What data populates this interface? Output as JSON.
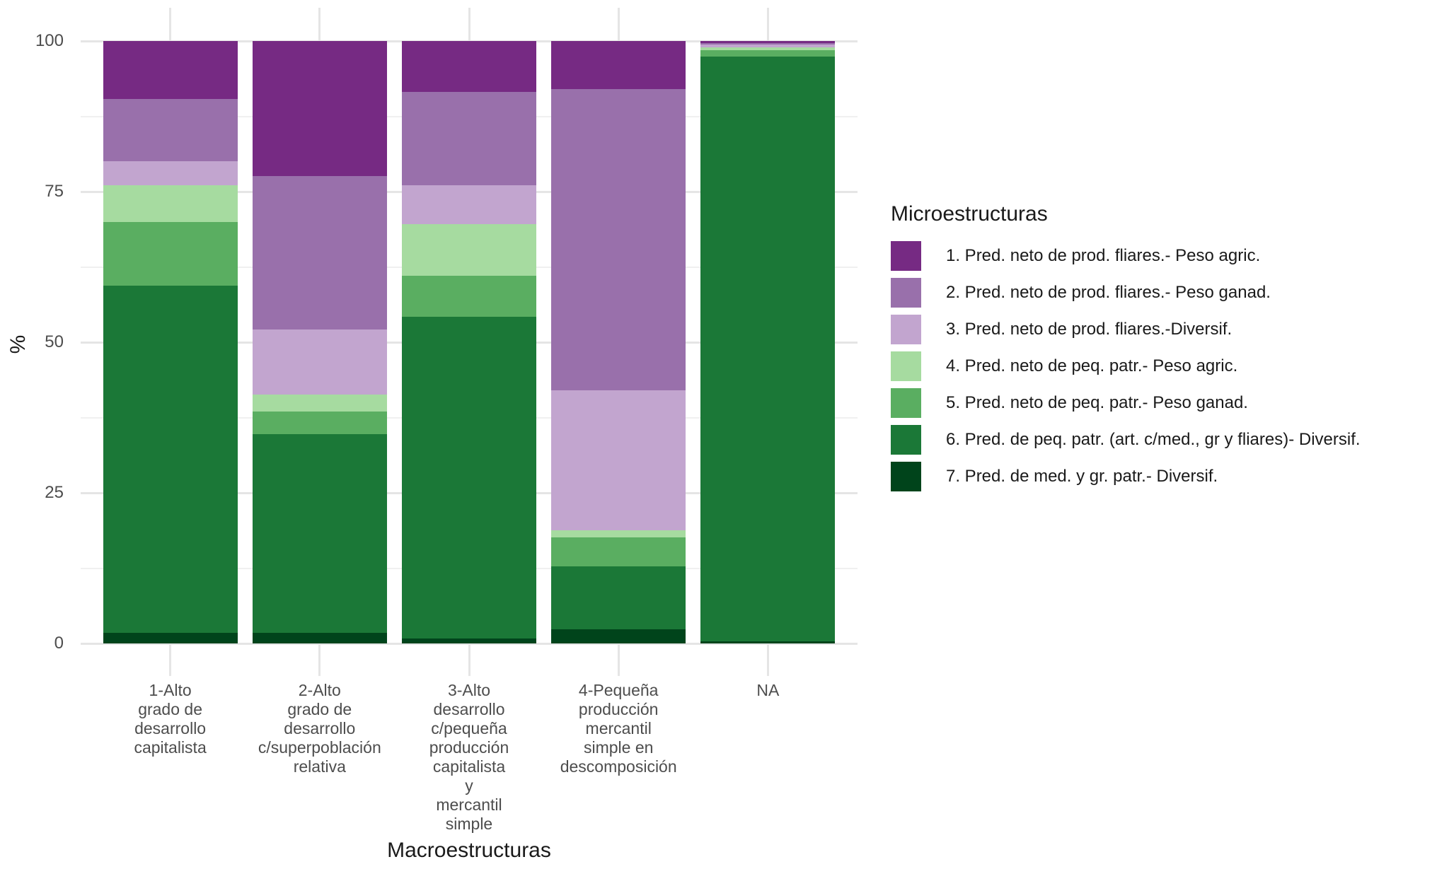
{
  "chart_data": {
    "type": "bar",
    "stacked": true,
    "percent_scale": true,
    "xlabel": "Macroestructuras",
    "ylabel": "%",
    "ylim": [
      0,
      100
    ],
    "yticks": [
      0,
      25,
      50,
      75,
      100
    ],
    "grid": "on",
    "legend_position": "right",
    "legend_title": "Microestructuras",
    "categories": [
      "1-Alto\ngrado de\ndesarrollo\ncapitalista",
      "2-Alto\ngrado de\ndesarrollo\nc/superpoblación\nrelativa",
      "3-Alto\ndesarrollo\nc/pequeña\nproducción\ncapitalista\ny\nmercantil\nsimple",
      "4-Pequeña\nproducción\nmercantil\nsimple en\ndescomposición",
      "NA"
    ],
    "series": [
      {
        "name": "1. Pred. neto de prod. fliares.- Peso agric.",
        "color": "#762a83",
        "values": [
          9.6,
          22.4,
          8.5,
          8.0,
          0.3
        ]
      },
      {
        "name": "2. Pred. neto de prod. fliares.- Peso ganad.",
        "color": "#9970ab",
        "values": [
          10.3,
          25.5,
          15.4,
          50.0,
          0.3
        ]
      },
      {
        "name": "3. Pred. neto de prod. fliares.-Diversif.",
        "color": "#c2a5cf",
        "values": [
          4.0,
          10.8,
          6.5,
          23.2,
          0.4
        ]
      },
      {
        "name": "4. Pred. neto de peq. patr.- Peso agric.",
        "color": "#a6dba0",
        "values": [
          6.2,
          2.8,
          8.6,
          1.2,
          0.5
        ]
      },
      {
        "name": "5. Pred. neto de peq. patr.- Peso ganad.",
        "color": "#5aae61",
        "values": [
          10.5,
          3.8,
          6.8,
          4.8,
          1.1
        ]
      },
      {
        "name": "6. Pred. de peq. patr. (art. c/med., gr y fliares)- Diversif.",
        "color": "#1b7837",
        "values": [
          57.6,
          33.0,
          53.4,
          10.5,
          97.1
        ]
      },
      {
        "name": "7. Pred. de med. y gr. patr.- Diversif.",
        "color": "#00441b",
        "values": [
          1.8,
          1.7,
          0.8,
          2.3,
          0.3
        ]
      }
    ],
    "stack_order": "series index 1 at top of each bar, series 7 at bottom",
    "colors": {
      "grid_major": "#e5e5e5",
      "grid_minor": "#f0f0f0",
      "axis_text": "#4d4d4d",
      "title_text": "#1a1a1a",
      "background": "#ffffff"
    }
  }
}
